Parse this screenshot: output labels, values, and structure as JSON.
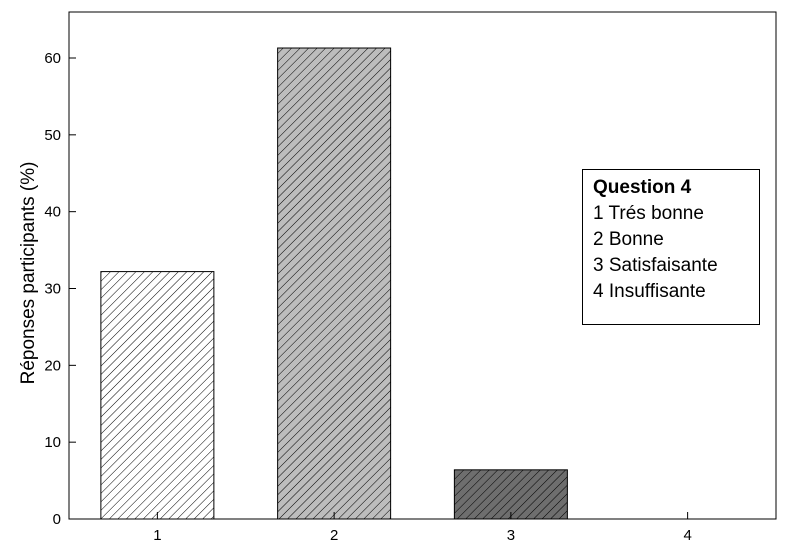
{
  "chart_data": {
    "type": "bar",
    "categories": [
      "1",
      "2",
      "3",
      "4"
    ],
    "values": [
      32.2,
      61.3,
      6.4,
      0
    ],
    "ylabel": "Réponses participants (%)",
    "xlabel": "",
    "ylim": [
      0,
      65
    ],
    "yticks": [
      0,
      10,
      20,
      30,
      40,
      50,
      60
    ],
    "grid": false,
    "legend_placement": "right",
    "bar_fills": [
      "#ffffff",
      "#bdbdbd",
      "#6e6e6e",
      "#ffffff"
    ],
    "legend": {
      "title": "Question 4",
      "items": [
        "1 Trés bonne",
        "2 Bonne",
        "3 Satisfaisante",
        "4 Insuffisante"
      ]
    }
  }
}
